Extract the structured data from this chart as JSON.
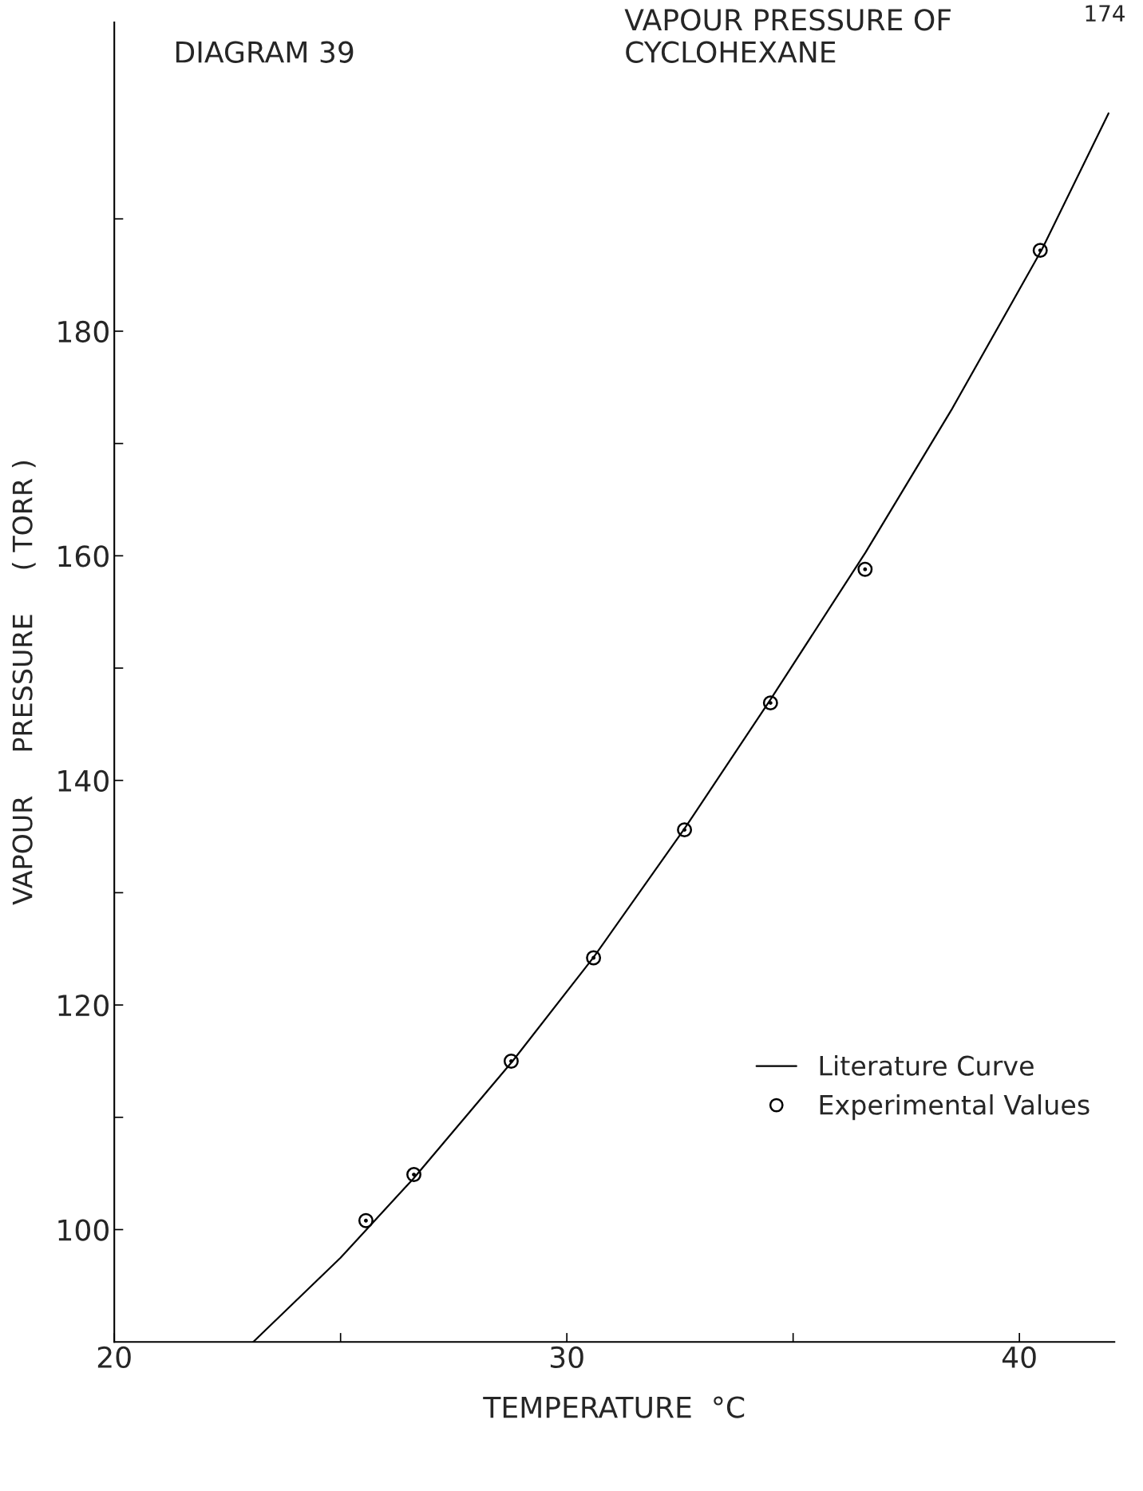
{
  "chart_data": {
    "type": "scatter",
    "title": "DIAGRAM 39",
    "subtitle": "VAPOUR PRESSURE OF CYCLOHEXANE",
    "xlabel": "TEMPERATURE  °C",
    "ylabel": "VAPOUR     PRESSURE     ( TORR )",
    "xlim": [
      20,
      42.1
    ],
    "ylim": [
      90,
      207.5
    ],
    "xticks": [
      20,
      {
        "value": 25,
        "label": null
      },
      30,
      {
        "value": 35,
        "label": null
      },
      40
    ],
    "yticks": [
      100,
      {
        "value": 110,
        "label": null
      },
      120,
      {
        "value": 130,
        "label": null
      },
      140,
      {
        "value": 150,
        "label": null
      },
      160,
      {
        "value": 170,
        "label": null
      },
      180,
      {
        "value": 190,
        "label": null
      }
    ],
    "grid": false,
    "legend": "bottom right",
    "annotations": [
      "174"
    ],
    "series": [
      {
        "name": "Literature Curve",
        "type": "line",
        "marker": "none",
        "line_style": "solid",
        "color": "#000000",
        "x": [
          23.07,
          25,
          26.6,
          28.8,
          30.6,
          32.6,
          34.5,
          36.6,
          38.5,
          40.5,
          41.97
        ],
        "values": [
          90,
          97.5,
          104.5,
          115,
          124.3,
          135.7,
          147.2,
          160.3,
          173,
          187.3,
          199.4
        ]
      },
      {
        "name": "Experimental Values",
        "marker": "circle",
        "color": "#000000",
        "x": [
          25.56,
          26.62,
          28.77,
          30.59,
          32.6,
          34.5,
          36.59,
          40.46
        ],
        "values": [
          100.8,
          104.9,
          115.0,
          124.2,
          135.6,
          146.9,
          158.8,
          187.2
        ]
      }
    ]
  }
}
